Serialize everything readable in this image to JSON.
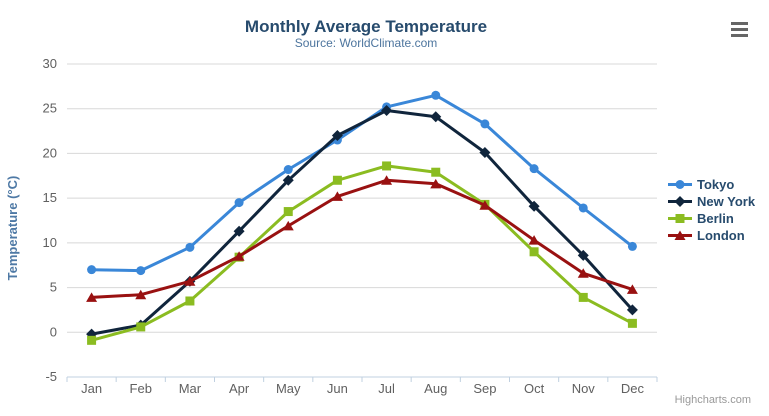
{
  "chart_data": {
    "type": "line",
    "title": "Monthly Average Temperature",
    "subtitle": "Source: WorldClimate.com",
    "ylabel": "Temperature (°C)",
    "xlabel": "",
    "categories": [
      "Jan",
      "Feb",
      "Mar",
      "Apr",
      "May",
      "Jun",
      "Jul",
      "Aug",
      "Sep",
      "Oct",
      "Nov",
      "Dec"
    ],
    "ylim": [
      -5,
      30
    ],
    "yticks": [
      -5,
      0,
      5,
      10,
      15,
      20,
      25,
      30
    ],
    "grid": true,
    "legend_position": "right",
    "series": [
      {
        "name": "Tokyo",
        "color": "#3a87d8",
        "marker": "circle",
        "values": [
          7.0,
          6.9,
          9.5,
          14.5,
          18.2,
          21.5,
          25.2,
          26.5,
          23.3,
          18.3,
          13.9,
          9.6
        ]
      },
      {
        "name": "New York",
        "color": "#10253c",
        "marker": "diamond",
        "values": [
          -0.2,
          0.8,
          5.7,
          11.3,
          17.0,
          22.0,
          24.8,
          24.1,
          20.1,
          14.1,
          8.6,
          2.5
        ]
      },
      {
        "name": "Berlin",
        "color": "#8bbc21",
        "marker": "square",
        "values": [
          -0.9,
          0.6,
          3.5,
          8.4,
          13.5,
          17.0,
          18.6,
          17.9,
          14.3,
          9.0,
          3.9,
          1.0
        ]
      },
      {
        "name": "London",
        "color": "#991111",
        "marker": "triangle",
        "values": [
          3.9,
          4.2,
          5.7,
          8.5,
          11.9,
          15.2,
          17.0,
          16.6,
          14.2,
          10.3,
          6.6,
          4.8
        ]
      }
    ]
  },
  "credits": {
    "label": "Highcharts.com"
  },
  "icons": {
    "context_menu": "hamburger-menu-icon"
  },
  "styles": {
    "title_color": "#274b6d",
    "subtitle_color": "#4d759e",
    "axis_title_color": "#4e79a5",
    "axis_label_color": "#606060",
    "axis_line_color": "#c0d0e0",
    "grid_color": "#d8d8d8",
    "legend_text_color": "#274b6d",
    "menu_icon_color": "#666666",
    "credits_color": "#999999"
  }
}
